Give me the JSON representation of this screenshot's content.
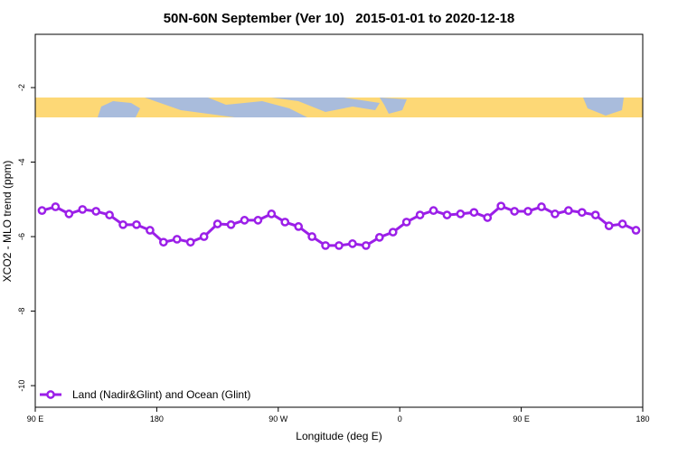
{
  "chart_data": {
    "type": "line",
    "title": "50N-60N September (Ver 10)   2015-01-01 to 2020-12-18",
    "x_label": "Longitude (deg E)",
    "y_label": "XCO2 - MLO trend (ppm)",
    "x": [
      95,
      105,
      115,
      125,
      135,
      145,
      155,
      165,
      175,
      185,
      195,
      205,
      215,
      225,
      235,
      245,
      255,
      265,
      275,
      285,
      295,
      305,
      315,
      325,
      335,
      345,
      355,
      365,
      375,
      385,
      395,
      405,
      415,
      425,
      435,
      445,
      455,
      465,
      475,
      485,
      495,
      505,
      515,
      525,
      535
    ],
    "series": [
      {
        "name": "Land (Nadir&Glint) and Ocean (Glint)",
        "color": "#9b1fe8",
        "values": [
          -5.3,
          -5.2,
          -5.39,
          -5.27,
          -5.32,
          -5.42,
          -5.68,
          -5.68,
          -5.83,
          -6.15,
          -6.07,
          -6.15,
          -6.0,
          -5.66,
          -5.68,
          -5.56,
          -5.56,
          -5.39,
          -5.61,
          -5.73,
          -6.0,
          -6.24,
          -6.24,
          -6.19,
          -6.24,
          -6.02,
          -5.88,
          -5.61,
          -5.42,
          -5.3,
          -5.42,
          -5.39,
          -5.35,
          -5.49,
          -5.18,
          -5.32,
          -5.32,
          -5.2,
          -5.39,
          -5.3,
          -5.35,
          -5.42,
          -5.71,
          -5.66,
          -5.83
        ]
      }
    ],
    "xlim": [
      90,
      540
    ],
    "xticks": [
      {
        "value": 90,
        "label": "90 E"
      },
      180,
      {
        "value": 270,
        "label": "90 W"
      },
      {
        "value": 360,
        "label": "0"
      },
      {
        "value": 450,
        "label": "90 E"
      },
      {
        "value": 540,
        "label": "180"
      }
    ],
    "ylim": [
      -10.58,
      -0.57
    ],
    "yticks": [
      -2,
      -4,
      -6,
      -8,
      -10
    ],
    "legend": "bottom-left"
  }
}
